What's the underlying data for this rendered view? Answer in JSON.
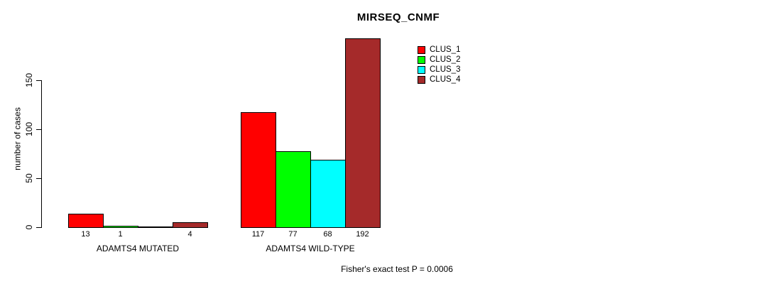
{
  "chart_data": {
    "type": "bar",
    "title": "MIRSEQ_CNMF",
    "ylabel": "number of cases",
    "xlabel": "",
    "yticks": [
      0,
      50,
      100,
      150
    ],
    "ylim": [
      0,
      195
    ],
    "grid": false,
    "legend_position": "top-right",
    "categories": [
      "ADAMTS4 MUTATED",
      "ADAMTS4 WILD-TYPE"
    ],
    "series": [
      {
        "name": "CLUS_1",
        "color": "#FF0000",
        "values": [
          13,
          117
        ]
      },
      {
        "name": "CLUS_2",
        "color": "#00FF00",
        "values": [
          1,
          77
        ]
      },
      {
        "name": "CLUS_3",
        "color": "#00FFFF",
        "values": [
          0,
          68
        ]
      },
      {
        "name": "CLUS_4",
        "color": "#A52A2A",
        "values": [
          4,
          192
        ]
      }
    ],
    "bar_value_labels": [
      [
        "13",
        "1",
        "",
        "4"
      ],
      [
        "117",
        "77",
        "68",
        "192"
      ]
    ],
    "footer": "Fisher's exact test P = 0.0006"
  }
}
